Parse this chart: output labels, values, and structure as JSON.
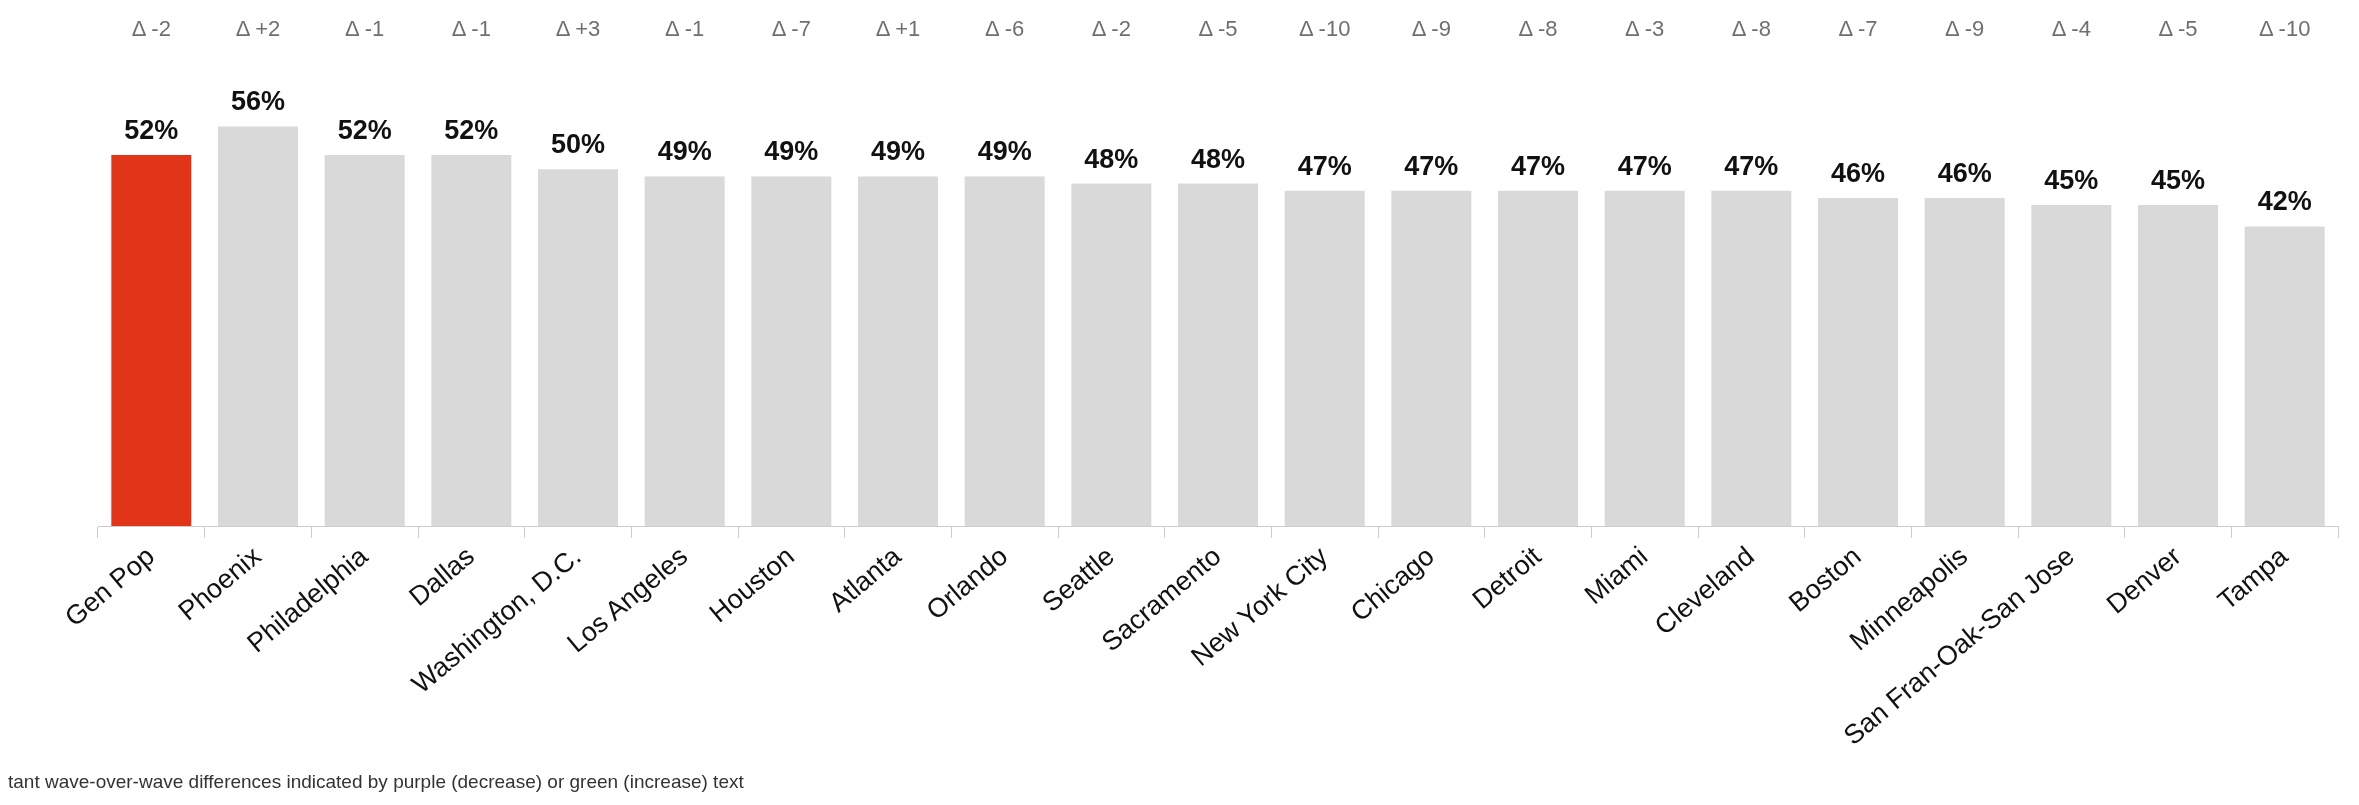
{
  "chart_data": {
    "type": "bar",
    "categories": [
      "Gen Pop",
      "Phoenix",
      "Philadelphia",
      "Dallas",
      "Washington, D.C.",
      "Los Angeles",
      "Houston",
      "Atlanta",
      "Orlando",
      "Seattle",
      "Sacramento",
      "New York City",
      "Chicago",
      "Detroit",
      "Miami",
      "Cleveland",
      "Boston",
      "Minneapolis",
      "San Fran-Oak-San Jose",
      "Denver",
      "Tampa"
    ],
    "values": [
      52,
      56,
      52,
      52,
      50,
      49,
      49,
      49,
      49,
      48,
      48,
      47,
      47,
      47,
      47,
      47,
      46,
      46,
      45,
      45,
      42
    ],
    "colors": [
      "#e03519",
      "#d9d9d9",
      "#d9d9d9",
      "#d9d9d9",
      "#d9d9d9",
      "#d9d9d9",
      "#d9d9d9",
      "#d9d9d9",
      "#d9d9d9",
      "#d9d9d9",
      "#d9d9d9",
      "#d9d9d9",
      "#d9d9d9",
      "#d9d9d9",
      "#d9d9d9",
      "#d9d9d9",
      "#d9d9d9",
      "#d9d9d9",
      "#d9d9d9",
      "#d9d9d9",
      "#d9d9d9"
    ],
    "value_labels": [
      "52%",
      "56%",
      "52%",
      "52%",
      "50%",
      "49%",
      "49%",
      "49%",
      "49%",
      "48%",
      "48%",
      "47%",
      "47%",
      "47%",
      "47%",
      "47%",
      "46%",
      "46%",
      "45%",
      "45%",
      "42%"
    ],
    "tick_labels": "x",
    "annotations": [
      "Δ -2",
      "Δ +2",
      "Δ -1",
      "Δ -1",
      "Δ +3",
      "Δ -1",
      "Δ -7",
      "Δ +1",
      "Δ -6",
      "Δ -2",
      "Δ -5",
      "Δ -10",
      "Δ -9",
      "Δ -8",
      "Δ -3",
      "Δ -8",
      "Δ -7",
      "Δ -9",
      "Δ -4",
      "Δ -5",
      "Δ -10",
      "tant wave-over-wave differences indicated by purple (decrease) or green (increase) text"
    ]
  }
}
